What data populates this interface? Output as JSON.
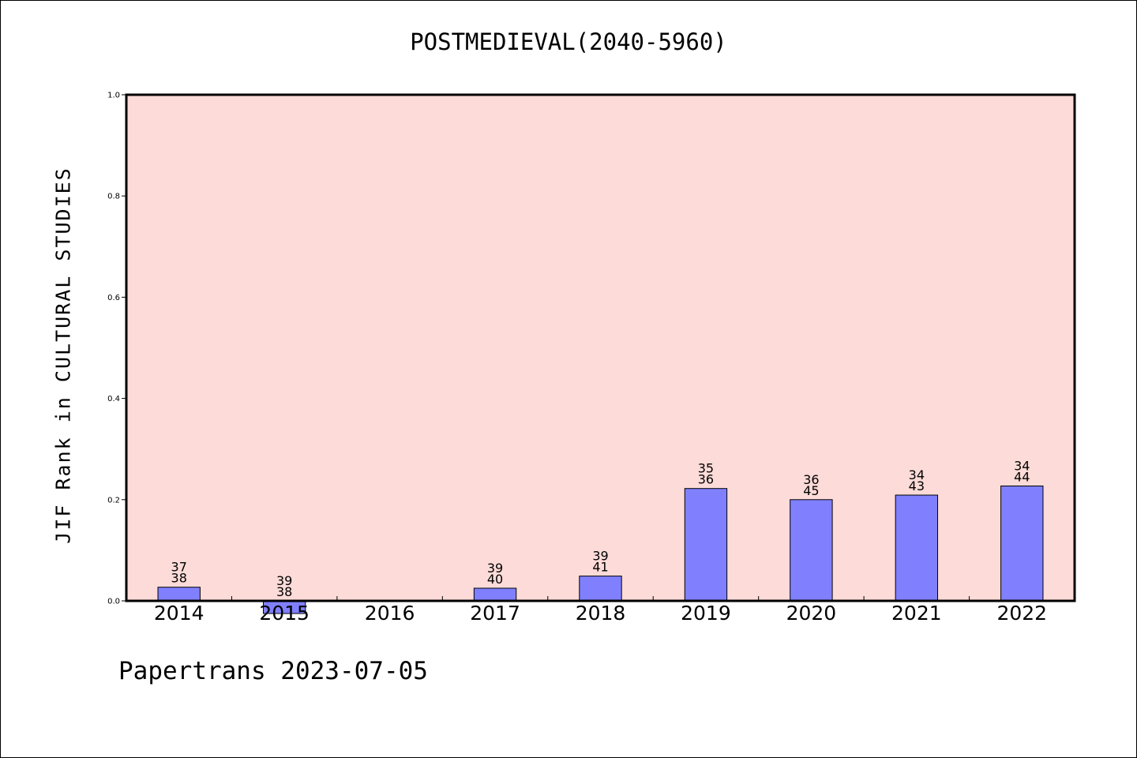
{
  "chart_data": {
    "type": "bar",
    "title": "POSTMEDIEVAL(2040-5960)",
    "xlabel": "",
    "ylabel": "JIF Rank in CULTURAL STUDIES",
    "ylim": [
      0,
      1.0
    ],
    "yticks": [
      "0.0",
      "0.2",
      "0.4",
      "0.6",
      "0.8",
      "1.0"
    ],
    "grid": false,
    "categories": [
      "2014",
      "2015",
      "2016",
      "2017",
      "2018",
      "2019",
      "2020",
      "2021",
      "2022"
    ],
    "values": [
      0.027,
      -0.025,
      null,
      0.025,
      0.049,
      0.222,
      0.2,
      0.209,
      0.227
    ],
    "rank_labels": [
      [
        "37",
        "38"
      ],
      [
        "39",
        "38"
      ],
      null,
      [
        "39",
        "40"
      ],
      [
        "39",
        "41"
      ],
      [
        "35",
        "36"
      ],
      [
        "36",
        "45"
      ],
      [
        "34",
        "43"
      ],
      [
        "34",
        "44"
      ]
    ],
    "colors": {
      "bar": "#8080ff",
      "plot_background": "#fddbd8"
    }
  },
  "footer": {
    "text": "Papertrans 2023-07-05"
  }
}
